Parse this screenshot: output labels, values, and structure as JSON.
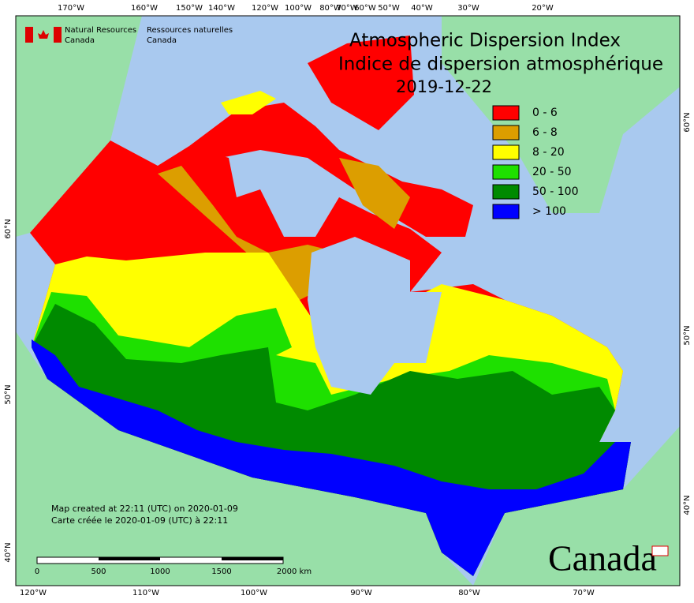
{
  "header": {
    "title": "Atmospheric Dispersion Index",
    "title_fr": "Indice de dispersion atmosphérique",
    "date": "2019-12-22"
  },
  "logo": {
    "en": "Natural Resources\nCanada",
    "fr": "Ressources naturelles\nCanada",
    "en_lines": [
      "Natural Resources",
      "Canada"
    ],
    "fr_lines": [
      "Ressources naturelles",
      "Canada"
    ]
  },
  "legend": [
    {
      "label": "0 - 6",
      "color": "#ff0000"
    },
    {
      "label": "6 - 8",
      "color": "#dc9e00"
    },
    {
      "label": "8 - 20",
      "color": "#ffff00"
    },
    {
      "label": "20 - 50",
      "color": "#1ee000"
    },
    {
      "label": "50 - 100",
      "color": "#008a00"
    },
    {
      "label": "> 100",
      "color": "#0000ff"
    }
  ],
  "top_labels": [
    "170°W",
    "160°W",
    "150°W",
    "140°W",
    "120°W",
    "100°W",
    "80°W",
    "70°W",
    "60°W",
    "50°W",
    "40°W",
    "30°W",
    "20°W"
  ],
  "bottom_labels": [
    "120°W",
    "110°W",
    "100°W",
    "90°W",
    "80°W",
    "70°W"
  ],
  "left_labels": [
    "60°N",
    "50°N",
    "40°N"
  ],
  "right_labels": [
    "60°N",
    "50°N",
    "40°N"
  ],
  "notes": [
    "Map created at 22:11 (UTC) on 2020-01-09",
    "Carte créée le 2020-01-09 (UTC) à 22:11"
  ],
  "scale": [
    "0",
    "500",
    "1000",
    "1500",
    "2000 km"
  ],
  "wordmark": "Canada"
}
